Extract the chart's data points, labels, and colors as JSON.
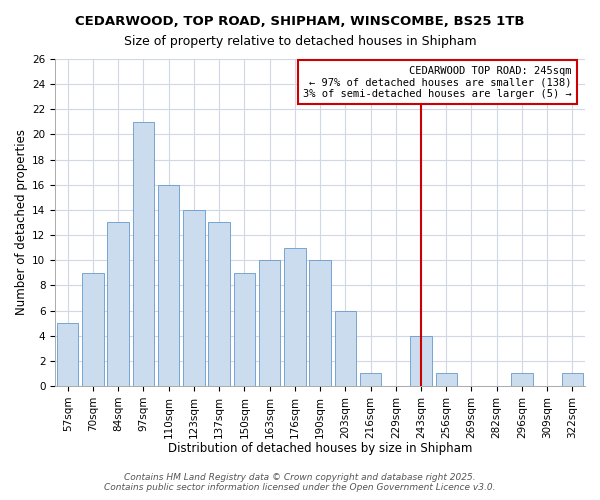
{
  "title1": "CEDARWOOD, TOP ROAD, SHIPHAM, WINSCOMBE, BS25 1TB",
  "title2": "Size of property relative to detached houses in Shipham",
  "xlabel": "Distribution of detached houses by size in Shipham",
  "ylabel": "Number of detached properties",
  "bar_labels": [
    "57sqm",
    "70sqm",
    "84sqm",
    "97sqm",
    "110sqm",
    "123sqm",
    "137sqm",
    "150sqm",
    "163sqm",
    "176sqm",
    "190sqm",
    "203sqm",
    "216sqm",
    "229sqm",
    "243sqm",
    "256sqm",
    "269sqm",
    "282sqm",
    "296sqm",
    "309sqm",
    "322sqm"
  ],
  "bar_heights": [
    5,
    9,
    13,
    21,
    16,
    14,
    13,
    9,
    10,
    11,
    10,
    6,
    1,
    0,
    4,
    1,
    0,
    0,
    1,
    0,
    1
  ],
  "bar_color": "#ccdcef",
  "bar_edge_color": "#6699cc",
  "vline_x_index": 14,
  "vline_color": "#cc0000",
  "annotation_title": "CEDARWOOD TOP ROAD: 245sqm",
  "annotation_line1": "← 97% of detached houses are smaller (138)",
  "annotation_line2": "3% of semi-detached houses are larger (5) →",
  "annotation_box_color": "#ffffff",
  "annotation_border_color": "#cc0000",
  "ylim": [
    0,
    26
  ],
  "yticks": [
    0,
    2,
    4,
    6,
    8,
    10,
    12,
    14,
    16,
    18,
    20,
    22,
    24,
    26
  ],
  "footer1": "Contains HM Land Registry data © Crown copyright and database right 2025.",
  "footer2": "Contains public sector information licensed under the Open Government Licence v3.0.",
  "fig_bg_color": "#ffffff",
  "plot_bg_color": "#ffffff",
  "grid_color": "#d0d8e8",
  "title1_fontsize": 9.5,
  "title2_fontsize": 9,
  "axis_label_fontsize": 8.5,
  "tick_fontsize": 7.5,
  "annotation_fontsize": 7.5,
  "footer_fontsize": 6.5
}
